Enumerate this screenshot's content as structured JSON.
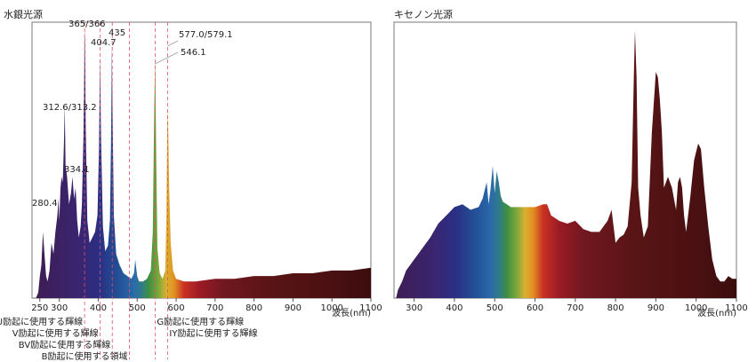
{
  "chart_data": [
    {
      "type": "area",
      "title": "水銀光源",
      "xunit": "波長(nm)",
      "xlim": [
        230,
        1100
      ],
      "ylim": [
        0,
        100
      ],
      "xticks": [
        250,
        300,
        400,
        500,
        600,
        700,
        800,
        900,
        1000,
        1100
      ],
      "grid": false,
      "series": {
        "x": [
          240,
          246,
          250,
          254,
          258,
          262,
          266,
          270,
          275,
          280,
          285,
          290,
          295,
          298,
          300,
          303,
          306,
          309,
          312,
          314,
          316,
          320,
          325,
          330,
          334,
          338,
          342,
          346,
          350,
          355,
          358,
          362,
          364,
          365,
          366,
          368,
          372,
          378,
          385,
          392,
          398,
          402,
          404.7,
          407,
          412,
          418,
          425,
          430,
          433,
          435,
          437,
          440,
          446,
          455,
          465,
          475,
          485,
          492,
          495,
          500,
          505,
          515,
          525,
          535,
          540,
          543,
          546.1,
          549,
          552,
          558,
          565,
          572,
          575,
          577,
          579,
          582,
          586,
          592,
          600,
          620,
          650,
          700,
          750,
          800,
          850,
          900,
          950,
          1000,
          1050,
          1100
        ],
        "y": [
          0,
          2,
          8,
          12,
          24,
          16,
          8,
          6,
          10,
          20,
          16,
          24,
          30,
          36,
          28,
          40,
          44,
          42,
          56,
          70,
          48,
          44,
          34,
          38,
          44,
          36,
          40,
          28,
          22,
          26,
          34,
          58,
          80,
          97,
          94,
          62,
          28,
          20,
          22,
          24,
          30,
          54,
          88,
          60,
          26,
          17,
          19,
          28,
          58,
          92,
          64,
          30,
          16,
          12,
          9,
          8,
          7,
          9,
          14,
          8,
          6,
          6,
          7,
          10,
          24,
          60,
          88,
          50,
          18,
          9,
          7,
          10,
          30,
          60,
          68,
          40,
          20,
          10,
          7,
          6,
          6,
          7,
          7,
          8,
          8,
          9,
          9,
          10,
          10,
          11
        ]
      },
      "annotations": [
        {
          "x": 280.4,
          "label": "280.4"
        },
        {
          "x": 312.6,
          "label": "312.6/313.2"
        },
        {
          "x": 334.1,
          "label": "334.1"
        },
        {
          "x": 365,
          "label": "365/366"
        },
        {
          "x": 404.7,
          "label": "404.7"
        },
        {
          "x": 435,
          "label": "435"
        },
        {
          "x": 546.1,
          "label": "546.1"
        },
        {
          "x": 578,
          "label": "577.0/579.1"
        }
      ],
      "excitation_lines": [
        {
          "x": 365,
          "label": "U励起に使用する輝線"
        },
        {
          "x": 405,
          "label": "V励起に使用する輝線"
        },
        {
          "x": 436,
          "label": "BV励起に使用する輝線"
        },
        {
          "x": 480,
          "label": "B励起に使用する領域"
        },
        {
          "x": 546,
          "label": "G励起に使用する輝線"
        },
        {
          "x": 578,
          "label": "IY励起に使用する輝線"
        }
      ]
    },
    {
      "type": "area",
      "title": "キセノン光源",
      "xunit": "波長(nm)",
      "xlim": [
        250,
        1100
      ],
      "ylim": [
        0,
        100
      ],
      "xticks": [
        300,
        400,
        500,
        600,
        700,
        800,
        900,
        1000,
        1100
      ],
      "grid": false,
      "series": {
        "x": [
          255,
          260,
          270,
          280,
          290,
          300,
          310,
          320,
          340,
          360,
          380,
          400,
          420,
          440,
          460,
          470,
          480,
          485,
          490,
          495,
          500,
          505,
          510,
          515,
          520,
          530,
          540,
          550,
          560,
          580,
          600,
          620,
          630,
          640,
          660,
          680,
          700,
          720,
          740,
          760,
          780,
          790,
          800,
          810,
          820,
          830,
          840,
          845,
          848,
          852,
          856,
          862,
          870,
          880,
          890,
          900,
          905,
          910,
          915,
          920,
          930,
          940,
          950,
          955,
          960,
          965,
          970,
          975,
          985,
          995,
          1005,
          1012,
          1020,
          1030,
          1040,
          1050,
          1060,
          1070,
          1080,
          1090,
          1100
        ],
        "y": [
          0,
          3,
          6,
          10,
          12,
          14,
          16,
          18,
          22,
          27,
          30,
          33,
          34,
          32,
          33,
          36,
          42,
          34,
          40,
          48,
          38,
          46,
          42,
          37,
          35,
          34,
          33,
          33,
          33,
          33,
          33,
          34,
          34,
          30,
          28,
          27,
          28,
          25,
          24,
          24,
          28,
          32,
          20,
          22,
          23,
          26,
          42,
          78,
          97,
          80,
          40,
          30,
          22,
          26,
          60,
          82,
          80,
          72,
          60,
          40,
          44,
          40,
          32,
          42,
          44,
          40,
          30,
          24,
          36,
          50,
          56,
          54,
          40,
          26,
          14,
          8,
          6,
          6,
          8,
          7,
          7
        ]
      }
    }
  ]
}
